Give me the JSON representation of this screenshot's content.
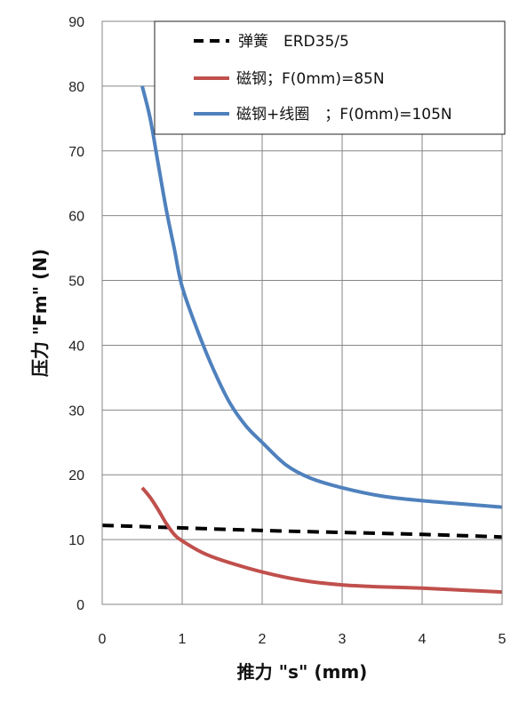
{
  "chart_data": {
    "type": "line",
    "xlabel": "推力 \"s\" (mm)",
    "ylabel": "压力 \"Fm\" (N)",
    "xlim": [
      0,
      5
    ],
    "ylim": [
      0,
      90
    ],
    "x_ticks": [
      "0",
      "1",
      "2",
      "3",
      "4",
      "5"
    ],
    "y_ticks": [
      "0",
      "10",
      "20",
      "30",
      "40",
      "50",
      "60",
      "70",
      "80",
      "90"
    ],
    "grid": true,
    "legend_position": "top-right",
    "series": [
      {
        "name": "弹簧　ERD35/5",
        "color": "#000000",
        "style": "dashed",
        "x": [
          0,
          1,
          2,
          3,
          4,
          5
        ],
        "y": [
          12.2,
          11.8,
          11.4,
          11.1,
          10.8,
          10.4
        ]
      },
      {
        "name": "磁钢；F(0mm)=85N",
        "color": "#c0504d",
        "style": "solid",
        "x": [
          0.5,
          0.6,
          0.7,
          0.8,
          0.9,
          1.0,
          1.25,
          1.5,
          2.0,
          2.5,
          3.0,
          3.5,
          4.0,
          4.5,
          5.0
        ],
        "y": [
          18,
          16.5,
          14.6,
          12.5,
          10.8,
          9.8,
          8.0,
          6.8,
          5.0,
          3.7,
          3.0,
          2.7,
          2.5,
          2.2,
          1.9
        ]
      },
      {
        "name": "磁钢+线圈　；F(0mm)=105N",
        "color": "#4f81bd",
        "style": "solid",
        "x": [
          0.5,
          0.6,
          0.7,
          0.8,
          0.9,
          1.0,
          1.2,
          1.4,
          1.6,
          1.8,
          2.0,
          2.3,
          2.6,
          3.0,
          3.5,
          4.0,
          4.5,
          5.0
        ],
        "y": [
          80,
          75,
          68,
          61,
          55,
          49,
          42,
          36,
          31,
          27.5,
          25,
          21.5,
          19.5,
          18,
          16.7,
          16,
          15.5,
          15
        ]
      }
    ]
  },
  "legend_labels": [
    "弹簧　ERD35/5",
    "磁钢；F(0mm)=85N",
    "磁钢+线圈　；F(0mm)=105N"
  ]
}
